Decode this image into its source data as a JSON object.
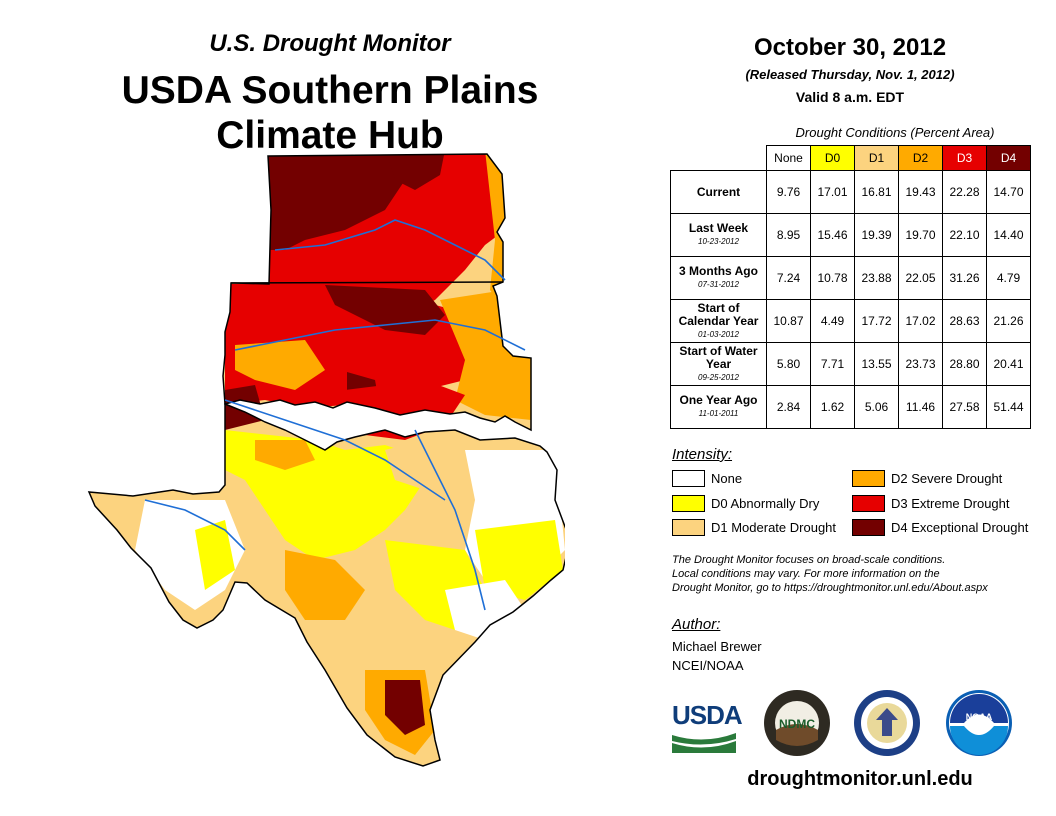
{
  "header": {
    "subtitle": "U.S. Drought Monitor",
    "title_line1": "USDA Southern Plains",
    "title_line2": "Climate Hub"
  },
  "date": {
    "main": "October 30, 2012",
    "released": "(Released Thursday, Nov. 1, 2012)",
    "valid": "Valid 8 a.m. EDT"
  },
  "conditions": {
    "caption": "Drought Conditions (Percent Area)",
    "columns": [
      "None",
      "D0",
      "D1",
      "D2",
      "D3",
      "D4"
    ],
    "column_colors": [
      "#ffffff",
      "#ffff00",
      "#fcd37f",
      "#ffaa00",
      "#e60000",
      "#730000"
    ],
    "column_text_colors": [
      "#000000",
      "#000000",
      "#000000",
      "#000000",
      "#ffffff",
      "#ffffff"
    ],
    "rows": [
      {
        "label": "Current",
        "sub": "",
        "values": [
          "9.76",
          "17.01",
          "16.81",
          "19.43",
          "22.28",
          "14.70"
        ]
      },
      {
        "label": "Last Week",
        "sub": "10-23-2012",
        "values": [
          "8.95",
          "15.46",
          "19.39",
          "19.70",
          "22.10",
          "14.40"
        ]
      },
      {
        "label": "3 Months Ago",
        "sub": "07-31-2012",
        "values": [
          "7.24",
          "10.78",
          "23.88",
          "22.05",
          "31.26",
          "4.79"
        ]
      },
      {
        "label": "Start of Calendar Year",
        "sub": "01-03-2012",
        "values": [
          "10.87",
          "4.49",
          "17.72",
          "17.02",
          "28.63",
          "21.26"
        ]
      },
      {
        "label": "Start of Water Year",
        "sub": "09-25-2012",
        "values": [
          "5.80",
          "7.71",
          "13.55",
          "23.73",
          "28.80",
          "20.41"
        ]
      },
      {
        "label": "One Year Ago",
        "sub": "11-01-2011",
        "values": [
          "2.84",
          "1.62",
          "5.06",
          "11.46",
          "27.58",
          "51.44"
        ]
      }
    ]
  },
  "legend": {
    "title": "Intensity:",
    "items": [
      {
        "label": "None",
        "color": "#ffffff"
      },
      {
        "label": "D0 Abnormally Dry",
        "color": "#ffff00"
      },
      {
        "label": "D1 Moderate Drought",
        "color": "#fcd37f"
      },
      {
        "label": "D2 Severe Drought",
        "color": "#ffaa00"
      },
      {
        "label": "D3 Extreme Drought",
        "color": "#e60000"
      },
      {
        "label": "D4 Exceptional Drought",
        "color": "#730000"
      }
    ]
  },
  "note": {
    "line1": "The Drought Monitor focuses on broad-scale conditions.",
    "line2": "Local conditions may vary. For more information on the",
    "line3": "Drought Monitor, go to https://droughtmonitor.unl.edu/About.aspx"
  },
  "author": {
    "title": "Author:",
    "name": "Michael Brewer",
    "org": "NCEI/NOAA"
  },
  "logos": {
    "usda": "USDA",
    "ndmc": "NDMC",
    "noaa": "NOAA"
  },
  "footer_url": "droughtmonitor.unl.edu"
}
